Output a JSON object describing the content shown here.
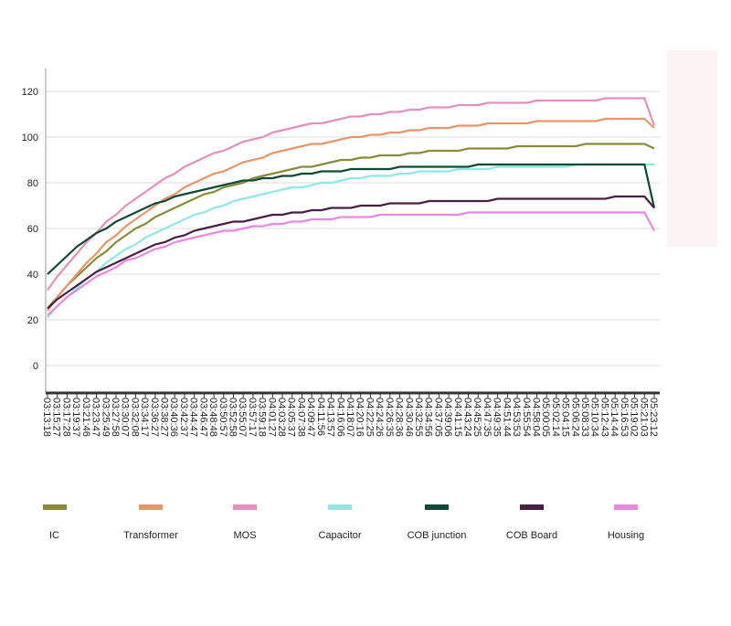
{
  "chart_data": {
    "type": "line",
    "categories": [
      "03:13:18",
      "03:15:27",
      "03:17:28",
      "03:19:37",
      "03:21:46",
      "03:23:47",
      "03:25:49",
      "03:27:58",
      "03:30:07",
      "03:32:08",
      "03:34:17",
      "03:36:27",
      "03:38:27",
      "03:40:36",
      "03:42:37",
      "03:44:47",
      "03:46:47",
      "03:48:48",
      "03:50:57",
      "03:52:58",
      "03:55:07",
      "03:57:17",
      "03:59:18",
      "04:01:27",
      "04:03:28",
      "04:05:37",
      "04:07:38",
      "04:09:47",
      "04:11:56",
      "04:13:57",
      "04:16:06",
      "04:18:07",
      "04:20:16",
      "04:22:25",
      "04:24:26",
      "04:26:35",
      "04:28:36",
      "04:30:46",
      "04:32:55",
      "04:34:56",
      "04:37:05",
      "04:39:06",
      "04:41:15",
      "04:43:24",
      "04:45:25",
      "04:47:35",
      "04:49:35",
      "04:51:44",
      "04:53:53",
      "04:55:54",
      "04:58:04",
      "05:00:05",
      "05:02:14",
      "05:04:15",
      "05:06:24",
      "05:08:33",
      "05:10:34",
      "05:12:43",
      "05:14:44",
      "05:16:53",
      "05:19:02",
      "05:21:03",
      "05:23:12"
    ],
    "series": [
      {
        "name": "IC",
        "color": "#8a8a3a",
        "values": [
          25,
          30,
          35,
          39,
          43,
          47,
          50,
          54,
          57,
          60,
          62,
          65,
          67,
          69,
          71,
          73,
          75,
          76,
          78,
          79,
          80,
          82,
          83,
          84,
          85,
          86,
          87,
          87,
          88,
          89,
          90,
          90,
          91,
          91,
          92,
          92,
          92,
          93,
          93,
          94,
          94,
          94,
          94,
          95,
          95,
          95,
          95,
          95,
          96,
          96,
          96,
          96,
          96,
          96,
          96,
          97,
          97,
          97,
          97,
          97,
          97,
          97,
          95
        ]
      },
      {
        "name": "Transformer",
        "color": "#e8956a",
        "values": [
          24,
          30,
          35,
          40,
          45,
          49,
          54,
          57,
          61,
          64,
          67,
          70,
          73,
          75,
          78,
          80,
          82,
          84,
          85,
          87,
          89,
          90,
          91,
          93,
          94,
          95,
          96,
          97,
          97,
          98,
          99,
          100,
          100,
          101,
          101,
          102,
          102,
          103,
          103,
          104,
          104,
          104,
          105,
          105,
          105,
          106,
          106,
          106,
          106,
          106,
          107,
          107,
          107,
          107,
          107,
          107,
          107,
          108,
          108,
          108,
          108,
          108,
          104
        ]
      },
      {
        "name": "MOS",
        "color": "#e58fbf",
        "values": [
          33,
          39,
          44,
          49,
          54,
          58,
          63,
          66,
          70,
          73,
          76,
          79,
          82,
          84,
          87,
          89,
          91,
          93,
          94,
          96,
          98,
          99,
          100,
          102,
          103,
          104,
          105,
          106,
          106,
          107,
          108,
          109,
          109,
          110,
          110,
          111,
          111,
          112,
          112,
          113,
          113,
          113,
          114,
          114,
          114,
          115,
          115,
          115,
          115,
          115,
          116,
          116,
          116,
          116,
          116,
          116,
          116,
          117,
          117,
          117,
          117,
          117,
          105
        ]
      },
      {
        "name": "Capacitor",
        "color": "#8ee8e8",
        "values": [
          21,
          26,
          30,
          34,
          38,
          41,
          45,
          48,
          51,
          53,
          56,
          58,
          60,
          62,
          64,
          66,
          67,
          69,
          70,
          72,
          73,
          74,
          75,
          76,
          77,
          78,
          78,
          79,
          80,
          80,
          81,
          82,
          82,
          83,
          83,
          83,
          84,
          84,
          85,
          85,
          85,
          85,
          86,
          86,
          86,
          86,
          87,
          87,
          87,
          87,
          87,
          87,
          87,
          87,
          88,
          88,
          88,
          88,
          88,
          88,
          88,
          88,
          88
        ]
      },
      {
        "name": "COB  junction",
        "color": "#0f4a35",
        "values": [
          40,
          44,
          48,
          52,
          55,
          58,
          60,
          63,
          65,
          67,
          69,
          71,
          72,
          74,
          75,
          76,
          77,
          78,
          79,
          80,
          81,
          81,
          82,
          82,
          83,
          83,
          84,
          84,
          85,
          85,
          85,
          86,
          86,
          86,
          86,
          86,
          87,
          87,
          87,
          87,
          87,
          87,
          87,
          87,
          88,
          88,
          88,
          88,
          88,
          88,
          88,
          88,
          88,
          88,
          88,
          88,
          88,
          88,
          88,
          88,
          88,
          88,
          69
        ]
      },
      {
        "name": "COB Board",
        "color": "#4a1f45",
        "values": [
          25,
          29,
          32,
          35,
          38,
          41,
          43,
          45,
          47,
          49,
          51,
          53,
          54,
          56,
          57,
          59,
          60,
          61,
          62,
          63,
          63,
          64,
          65,
          66,
          66,
          67,
          67,
          68,
          68,
          69,
          69,
          69,
          70,
          70,
          70,
          71,
          71,
          71,
          71,
          72,
          72,
          72,
          72,
          72,
          72,
          72,
          73,
          73,
          73,
          73,
          73,
          73,
          73,
          73,
          73,
          73,
          73,
          73,
          74,
          74,
          74,
          74,
          69
        ]
      },
      {
        "name": "Housing",
        "color": "#e888e0",
        "values": [
          22,
          26,
          30,
          33,
          36,
          39,
          41,
          43,
          46,
          47,
          49,
          51,
          52,
          54,
          55,
          56,
          57,
          58,
          59,
          59,
          60,
          61,
          61,
          62,
          62,
          63,
          63,
          64,
          64,
          64,
          65,
          65,
          65,
          65,
          66,
          66,
          66,
          66,
          66,
          66,
          66,
          66,
          66,
          67,
          67,
          67,
          67,
          67,
          67,
          67,
          67,
          67,
          67,
          67,
          67,
          67,
          67,
          67,
          67,
          67,
          67,
          67,
          59
        ]
      }
    ],
    "ylim": [
      -12,
      130
    ],
    "yticks": [
      0,
      20,
      40,
      60,
      80,
      100,
      120
    ],
    "grid": true
  }
}
